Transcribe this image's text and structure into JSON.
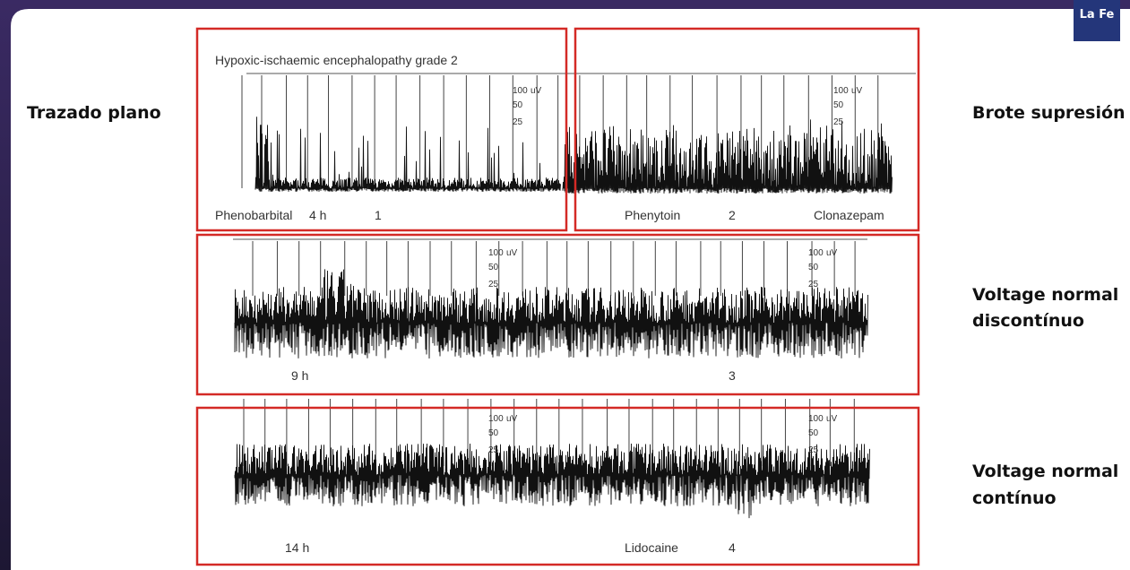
{
  "slide": {
    "left_label": "Trazado plano",
    "right_labels": [
      [
        "Brote supresión"
      ],
      [
        "Voltage normal",
        "discontínuo"
      ],
      [
        "Voltage normal",
        "contínuo"
      ]
    ],
    "logo": "La Fe"
  },
  "figure": {
    "title": "Hypoxic-ischaemic encephalopathy grade 2",
    "scale": {
      "top": "100",
      "unit": "uV",
      "mid": "50",
      "low": "25"
    },
    "row1": {
      "drug1": "Phenobarbital",
      "time": "4 h",
      "number1": "1",
      "drug2": "Phenytoin",
      "number2": "2",
      "drug3": "Clonazepam"
    },
    "row2": {
      "time": "9 h",
      "number": "3"
    },
    "row3": {
      "time": "14 h",
      "drug": "Lidocaine",
      "number": "4"
    }
  }
}
